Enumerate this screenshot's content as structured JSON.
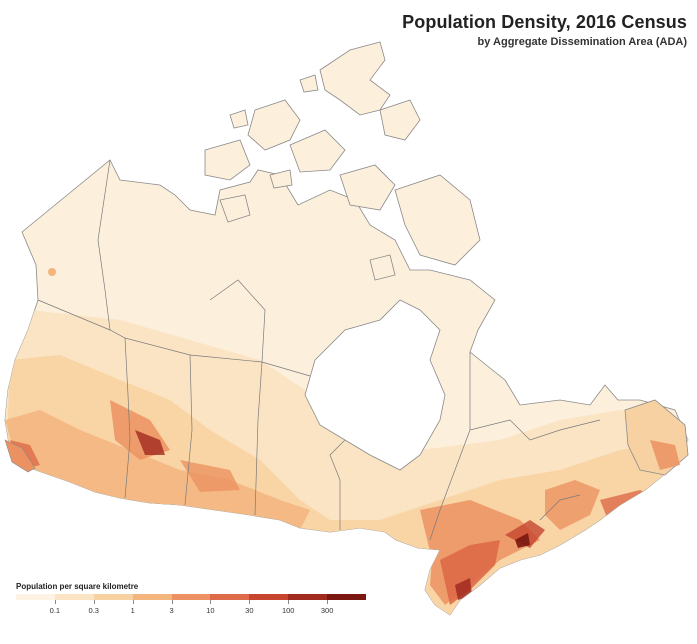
{
  "title": "Population Density, 2016 Census",
  "subtitle": "by Aggregate Dissemination Area (ADA)",
  "legend": {
    "title": "Population per square kilometre",
    "ticks": [
      "0.1",
      "0.3",
      "1",
      "3",
      "10",
      "30",
      "100",
      "300"
    ],
    "colors": [
      "#fdf3e4",
      "#fbe4c4",
      "#f8d1a2",
      "#f3b47e",
      "#ec9262",
      "#dd6a48",
      "#c5452f",
      "#a12a1f",
      "#7a1710"
    ]
  },
  "colors": {
    "background": "#ffffff",
    "land_low": "#fcefdc",
    "water": "#ffffff",
    "border": "#7a7a7a",
    "coast": "#8a8a8a"
  }
}
